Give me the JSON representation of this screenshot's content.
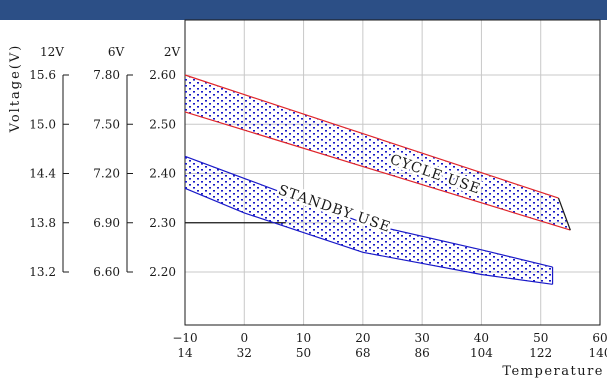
{
  "colors": {
    "header_bar": "#2c4f86",
    "cycle_band": "#e0262b",
    "standby_band": "#1a1ac8",
    "fill_dots": "#1a1ac8",
    "grid": "#c8c8c8",
    "axis": "#1a1a1a"
  },
  "chart_data": {
    "type": "area",
    "title": "",
    "ylabel": "Voltage(V)",
    "xlabel": "Temperature",
    "grid": true,
    "x_unit": "(℃)",
    "x_unit_f": "(℉)",
    "xlim": [
      -10,
      60
    ],
    "ylim": [
      2.1,
      2.7
    ],
    "x_ticks": [
      -10,
      0,
      10,
      20,
      30,
      40,
      50,
      60
    ],
    "x_tick_labels": [
      "−10",
      "0",
      "10",
      "20",
      "30",
      "40",
      "50",
      "60"
    ],
    "x_tick_labels_f": [
      "14",
      "32",
      "50",
      "68",
      "86",
      "104",
      "122",
      "140"
    ],
    "voltage_scales": [
      {
        "header": "12V",
        "ticks": [
          "15.6",
          "15.0",
          "14.4",
          "13.8",
          "13.2"
        ]
      },
      {
        "header": "6V",
        "ticks": [
          "7.80",
          "7.50",
          "7.20",
          "6.90",
          "6.60"
        ]
      },
      {
        "header": "2V",
        "ticks": [
          "2.60",
          "2.50",
          "2.40",
          "2.30",
          "2.20"
        ]
      }
    ],
    "y_tick_values": [
      2.6,
      2.5,
      2.4,
      2.3,
      2.2
    ],
    "reference_line": {
      "y": 2.3,
      "x_from": -10,
      "x_to": 7
    },
    "series": [
      {
        "name": "CYCLE USE",
        "upper": [
          [
            -10,
            2.6
          ],
          [
            53,
            2.35
          ]
        ],
        "lower": [
          [
            -10,
            2.525
          ],
          [
            55,
            2.285
          ]
        ],
        "label_at": {
          "x": 32,
          "y": 2.39,
          "angle": 19
        }
      },
      {
        "name": "STANDBY USE",
        "upper": [
          [
            -10,
            2.435
          ],
          [
            0,
            2.39
          ],
          [
            20,
            2.3
          ],
          [
            40,
            2.245
          ],
          [
            52,
            2.21
          ]
        ],
        "lower": [
          [
            -10,
            2.37
          ],
          [
            0,
            2.32
          ],
          [
            20,
            2.24
          ],
          [
            40,
            2.195
          ],
          [
            52,
            2.175
          ]
        ],
        "label_at": {
          "x": 15,
          "y": 2.32,
          "angle": 19
        }
      }
    ]
  }
}
